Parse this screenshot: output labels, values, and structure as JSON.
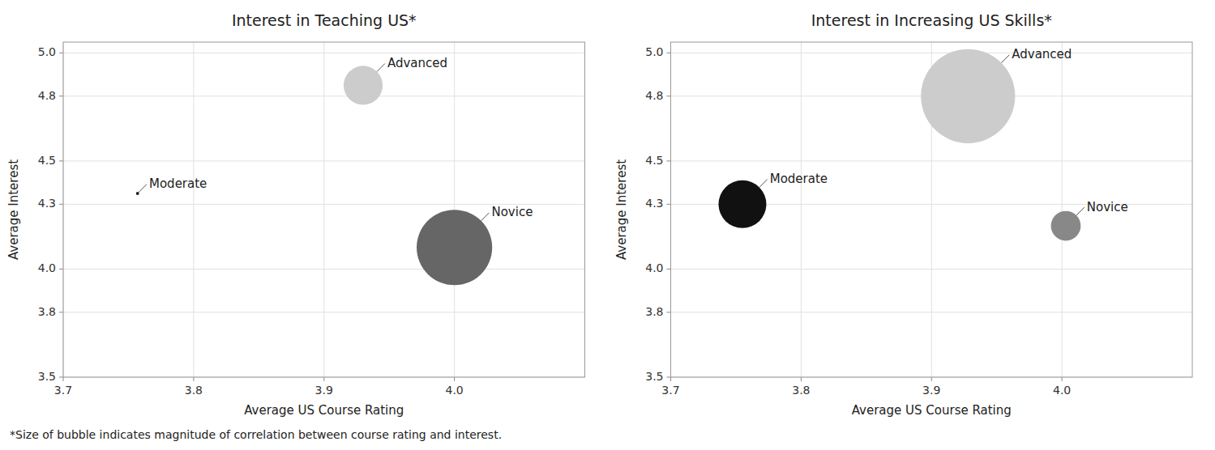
{
  "chart_data": [
    {
      "type": "scatter",
      "title": "Interest in Teaching US*",
      "xlabel": "Average US Course Rating",
      "ylabel": "Average Interest",
      "labels": [
        "Moderate",
        "Advanced",
        "Novice"
      ],
      "x": [
        3.757,
        3.93,
        4.0
      ],
      "values": [
        4.35,
        4.85,
        4.1
      ],
      "sizes": [
        8,
        1200,
        4500
      ],
      "colors": [
        "#222222",
        "#cccccc",
        "#666666"
      ],
      "xlim": [
        3.7,
        4.1
      ],
      "ylim": [
        3.5,
        5.05
      ],
      "xticks": [
        3.7,
        3.8,
        3.9,
        {
          "value": 4.0,
          "label": "4.0"
        }
      ],
      "yticks": [
        {
          "value": 3.5,
          "label": "3.5"
        },
        3.8,
        {
          "value": 4.0,
          "label": "4.0"
        },
        4.3,
        4.5,
        4.8,
        {
          "value": 5.0,
          "label": "5.0"
        }
      ],
      "grid": true
    },
    {
      "type": "scatter",
      "title": "Interest in Increasing US Skills*",
      "xlabel": "Average US Course Rating",
      "ylabel": "Average Interest",
      "labels": [
        "Moderate",
        "Advanced",
        "Novice"
      ],
      "x": [
        3.755,
        3.928,
        4.003
      ],
      "values": [
        4.3,
        4.8,
        4.2
      ],
      "sizes": [
        1800,
        7000,
        700
      ],
      "colors": [
        "#111111",
        "#cccccc",
        "#888888"
      ],
      "xlim": [
        3.7,
        4.1
      ],
      "ylim": [
        3.5,
        5.05
      ],
      "xticks": [
        3.7,
        3.8,
        3.9,
        {
          "value": 4.0,
          "label": "4.0"
        }
      ],
      "yticks": [
        {
          "value": 3.5,
          "label": "3.5"
        },
        3.8,
        {
          "value": 4.0,
          "label": "4.0"
        },
        4.3,
        4.5,
        4.8,
        {
          "value": 5.0,
          "label": "5.0"
        }
      ],
      "grid": true
    }
  ],
  "footnote": "*Size of bubble indicates magnitude of correlation between course rating and interest."
}
